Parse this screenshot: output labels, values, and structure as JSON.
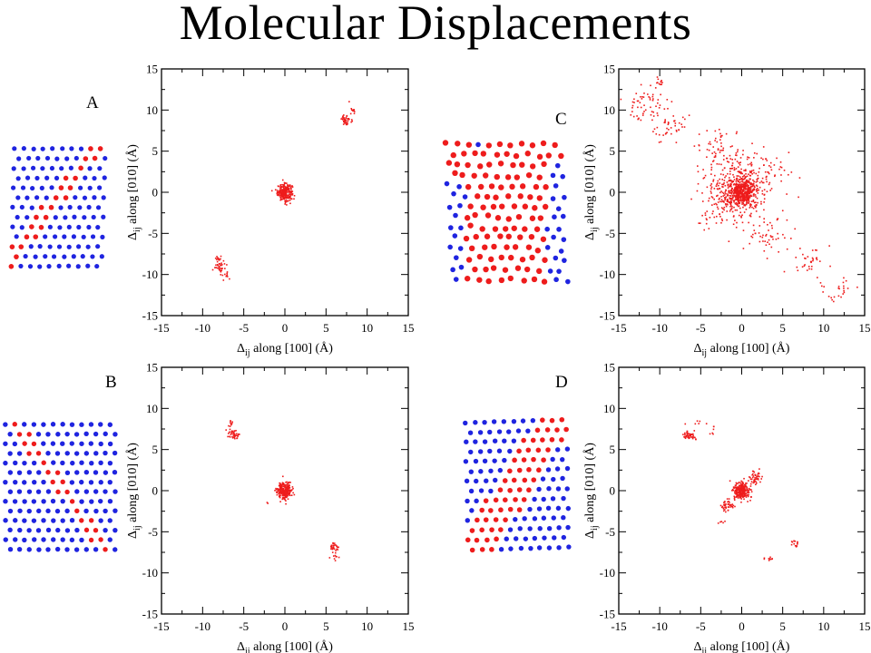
{
  "title": "Molecular Displacements",
  "colors": {
    "red": "#ee1c1c",
    "blue": "#1f24e0"
  },
  "chart_data": [
    {
      "type": "scatter",
      "panel": "A",
      "xlim": [
        -15,
        15
      ],
      "ylim": [
        -15,
        15
      ],
      "xticks": [
        -15,
        -10,
        -5,
        0,
        5,
        10,
        15
      ],
      "yticks": [
        -15,
        -10,
        -5,
        0,
        5,
        10,
        15
      ],
      "xlabel_main": "Δ",
      "xlabel_sub": "ij",
      "xlabel_rest": " along [100] (Å)",
      "ylabel_main": "Δ",
      "ylabel_sub": "ij",
      "ylabel_rest": " along [010] (Å)",
      "clusters": [
        {
          "cx": 0,
          "cy": 0,
          "sx": 0.45,
          "sy": 0.5,
          "n": 260
        },
        {
          "cx": 7.5,
          "cy": 8.8,
          "sx": 0.3,
          "sy": 0.35,
          "n": 45
        },
        {
          "cx": 8.2,
          "cy": 10.2,
          "sx": 0.2,
          "sy": 0.3,
          "n": 10
        },
        {
          "cx": -7.9,
          "cy": -8.8,
          "sx": 0.3,
          "sy": 0.5,
          "n": 45
        },
        {
          "cx": -7.2,
          "cy": -10.0,
          "sx": 0.3,
          "sy": 0.4,
          "n": 10
        }
      ]
    },
    {
      "type": "scatter",
      "panel": "C",
      "xlim": [
        -15,
        15
      ],
      "ylim": [
        -15,
        15
      ],
      "xticks": [
        -15,
        -10,
        -5,
        0,
        5,
        10,
        15
      ],
      "yticks": [
        -15,
        -10,
        -5,
        0,
        5,
        10,
        15
      ],
      "xlabel_main": "Δ",
      "xlabel_sub": "ij",
      "xlabel_rest": " along [100] (Å)",
      "ylabel_main": "Δ",
      "ylabel_sub": "ij",
      "ylabel_rest": " along [010] (Å)",
      "clusters": [
        {
          "cx": 0,
          "cy": 0,
          "sx": 0.8,
          "sy": 0.8,
          "n": 420
        },
        {
          "cx": -0.5,
          "cy": 0.5,
          "sx": 2.0,
          "sy": 2.0,
          "n": 420
        },
        {
          "cx": -11.5,
          "cy": 10.8,
          "sx": 1.3,
          "sy": 1.0,
          "n": 60
        },
        {
          "cx": -8.5,
          "cy": 8.0,
          "sx": 1.0,
          "sy": 0.8,
          "n": 40
        },
        {
          "cx": -9.8,
          "cy": 13.5,
          "sx": 0.4,
          "sy": 0.3,
          "n": 10
        },
        {
          "cx": -2.5,
          "cy": 5.5,
          "sx": 1.5,
          "sy": 1.2,
          "n": 50
        },
        {
          "cx": 3.5,
          "cy": -5.5,
          "sx": 1.5,
          "sy": 1.4,
          "n": 50
        },
        {
          "cx": 8.5,
          "cy": -8.5,
          "sx": 1.0,
          "sy": 1.0,
          "n": 30
        },
        {
          "cx": 11.5,
          "cy": -12.0,
          "sx": 1.2,
          "sy": 0.8,
          "n": 25
        },
        {
          "cx": 4.0,
          "cy": 3.0,
          "sx": 0.9,
          "sy": 0.8,
          "n": 20
        },
        {
          "cx": -4.0,
          "cy": -3.0,
          "sx": 0.9,
          "sy": 0.8,
          "n": 20
        }
      ]
    },
    {
      "type": "scatter",
      "panel": "B",
      "xlim": [
        -15,
        15
      ],
      "ylim": [
        -15,
        15
      ],
      "xticks": [
        -15,
        -10,
        -5,
        0,
        5,
        10,
        15
      ],
      "yticks": [
        -15,
        -10,
        -5,
        0,
        5,
        10,
        15
      ],
      "xlabel_main": "Δ",
      "xlabel_sub": "ij",
      "xlabel_rest": " along [100] (Å)",
      "ylabel_main": "Δ",
      "ylabel_sub": "ij",
      "ylabel_rest": " along [010] (Å)",
      "clusters": [
        {
          "cx": 0,
          "cy": 0,
          "sx": 0.45,
          "sy": 0.5,
          "n": 260
        },
        {
          "cx": -6.2,
          "cy": 6.9,
          "sx": 0.35,
          "sy": 0.35,
          "n": 45
        },
        {
          "cx": -6.6,
          "cy": 8.1,
          "sx": 0.25,
          "sy": 0.2,
          "n": 10
        },
        {
          "cx": 6.0,
          "cy": -6.9,
          "sx": 0.3,
          "sy": 0.3,
          "n": 30
        },
        {
          "cx": 6.1,
          "cy": -8.0,
          "sx": 0.3,
          "sy": 0.3,
          "n": 8
        },
        {
          "cx": -2.2,
          "cy": -1.5,
          "sx": 0.1,
          "sy": 0.1,
          "n": 2
        }
      ]
    },
    {
      "type": "scatter",
      "panel": "D",
      "xlim": [
        -15,
        15
      ],
      "ylim": [
        -15,
        15
      ],
      "xticks": [
        -15,
        -10,
        -5,
        0,
        5,
        10,
        15
      ],
      "yticks": [
        -15,
        -10,
        -5,
        0,
        5,
        10,
        15
      ],
      "xlabel_main": "Δ",
      "xlabel_sub": "ij",
      "xlabel_rest": " along [100] (Å)",
      "ylabel_main": "Δ",
      "ylabel_sub": "ij",
      "ylabel_rest": " along [010] (Å)",
      "clusters": [
        {
          "cx": 0,
          "cy": 0,
          "sx": 0.5,
          "sy": 0.55,
          "n": 240
        },
        {
          "cx": -1.8,
          "cy": -1.8,
          "sx": 0.5,
          "sy": 0.4,
          "n": 45
        },
        {
          "cx": 1.7,
          "cy": 1.7,
          "sx": 0.4,
          "sy": 0.5,
          "n": 45
        },
        {
          "cx": -6.5,
          "cy": 6.6,
          "sx": 0.35,
          "sy": 0.3,
          "n": 45
        },
        {
          "cx": -4.5,
          "cy": 8.0,
          "sx": 1.3,
          "sy": 0.8,
          "n": 14
        },
        {
          "cx": 6.3,
          "cy": -6.5,
          "sx": 0.25,
          "sy": 0.25,
          "n": 15
        },
        {
          "cx": 3.0,
          "cy": -8.3,
          "sx": 0.7,
          "sy": 0.15,
          "n": 10
        },
        {
          "cx": -2.5,
          "cy": -3.8,
          "sx": 0.3,
          "sy": 0.2,
          "n": 5
        }
      ]
    }
  ]
}
